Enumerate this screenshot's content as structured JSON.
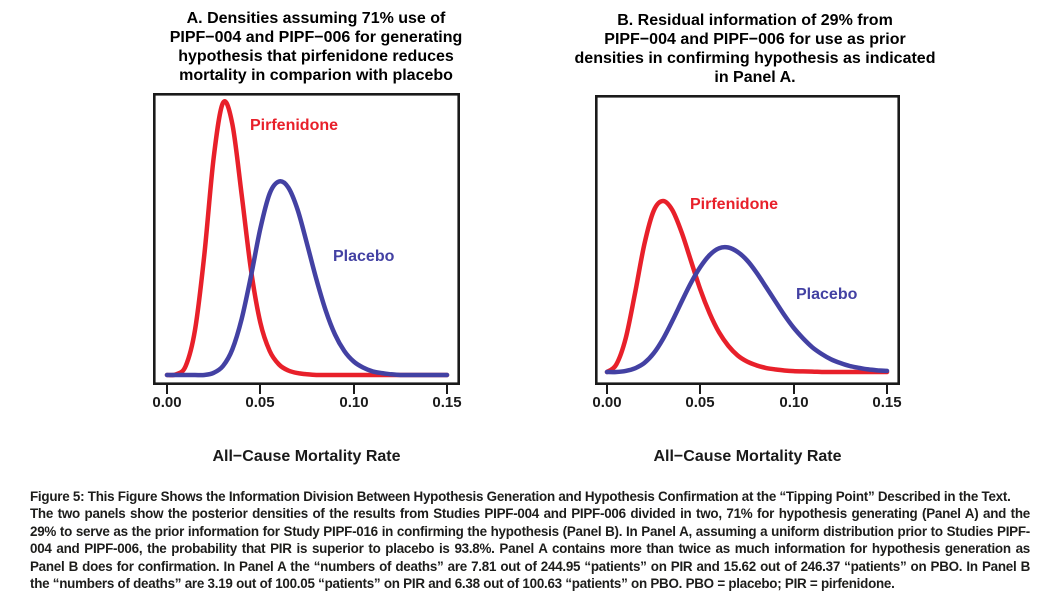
{
  "chart_data": [
    {
      "panel": "A",
      "type": "line",
      "title": "A. Densities assuming 71% use of PIPF−004 and PIPF−006 for generating hypothesis that pirfenidone reduces mortality in comparion with placebo",
      "title_lines": [
        "A. Densities assuming 71% use of",
        "PIPF−004 and PIPF−006 for generating",
        "hypothesis that pirfenidone reduces",
        "mortality in comparion with placebo"
      ],
      "xlabel": "All−Cause Mortality Rate",
      "ylabel": "",
      "y_axis_shown": false,
      "xlim": [
        0,
        0.15
      ],
      "ylim": [
        0,
        38
      ],
      "xticks": [
        0.0,
        0.05,
        0.1,
        0.15
      ],
      "xtick_labels": [
        "0.00",
        "0.05",
        "0.10",
        "0.15"
      ],
      "x": [
        0,
        0.005,
        0.01,
        0.015,
        0.02,
        0.025,
        0.03,
        0.035,
        0.04,
        0.045,
        0.05,
        0.055,
        0.06,
        0.065,
        0.07,
        0.075,
        0.08,
        0.085,
        0.09,
        0.095,
        0.1,
        0.105,
        0.11,
        0.115,
        0.12,
        0.125,
        0.13,
        0.135,
        0.14,
        0.145,
        0.15
      ],
      "series": [
        {
          "name": "Pirfenidone",
          "color": "#e8202a",
          "peak_x": 0.031,
          "density": [
            0,
            0.1,
            1.2,
            6,
            16,
            29,
            36.3,
            33.5,
            24,
            14,
            7,
            3.2,
            1.4,
            0.6,
            0.25,
            0.1,
            0,
            0,
            0,
            0,
            0,
            0,
            0,
            0,
            0,
            0,
            0,
            0,
            0,
            0,
            0
          ]
        },
        {
          "name": "Placebo",
          "color": "#4341a3",
          "peak_x": 0.062,
          "density": [
            0,
            0,
            0,
            0,
            0,
            0.3,
            1.2,
            3.4,
            7.5,
            13.2,
            19.5,
            24.2,
            25.8,
            25.0,
            22.0,
            17.5,
            12.8,
            8.6,
            5.4,
            3.2,
            1.8,
            1.0,
            0.5,
            0.25,
            0.1,
            0,
            0,
            0,
            0,
            0,
            0
          ]
        }
      ]
    },
    {
      "panel": "B",
      "type": "line",
      "title": "B. Residual information of 29% from PIPF−004 and PIPF−006 for use as prior densities in confirming hypothesis as indicated in Panel A.",
      "title_lines": [
        "B. Residual information of 29% from",
        "PIPF−004 and PIPF−006 for use as prior",
        "densities in confirming hypothesis as indicated",
        "in Panel A."
      ],
      "xlabel": "All−Cause Mortality Rate",
      "ylabel": "",
      "y_axis_shown": false,
      "xlim": [
        0,
        0.15
      ],
      "ylim": [
        0,
        38
      ],
      "xticks": [
        0.0,
        0.05,
        0.1,
        0.15
      ],
      "xtick_labels": [
        "0.00",
        "0.05",
        "0.10",
        "0.15"
      ],
      "x": [
        0,
        0.005,
        0.01,
        0.015,
        0.02,
        0.025,
        0.03,
        0.035,
        0.04,
        0.045,
        0.05,
        0.055,
        0.06,
        0.065,
        0.07,
        0.075,
        0.08,
        0.085,
        0.09,
        0.095,
        0.1,
        0.105,
        0.11,
        0.115,
        0.12,
        0.125,
        0.13,
        0.135,
        0.14,
        0.145,
        0.15
      ],
      "series": [
        {
          "name": "Pirfenidone",
          "color": "#e8202a",
          "peak_x": 0.031,
          "density": [
            0,
            1,
            4.5,
            10.5,
            17,
            21.5,
            22.8,
            21.6,
            18.6,
            14.8,
            11,
            7.8,
            5.3,
            3.5,
            2.2,
            1.4,
            0.9,
            0.55,
            0.35,
            0.2,
            0.12,
            0.08,
            0.05,
            0,
            0,
            0,
            0,
            0,
            0,
            0,
            0
          ]
        },
        {
          "name": "Placebo",
          "color": "#4341a3",
          "peak_x": 0.063,
          "density": [
            0,
            0,
            0.15,
            0.5,
            1.2,
            2.5,
            4.4,
            6.8,
            9.4,
            11.9,
            14,
            15.6,
            16.5,
            16.6,
            16,
            14.9,
            13.3,
            11.4,
            9.5,
            7.6,
            5.9,
            4.5,
            3.3,
            2.4,
            1.7,
            1.2,
            0.8,
            0.55,
            0.35,
            0.22,
            0.15
          ]
        }
      ]
    }
  ],
  "caption": {
    "lead": "Figure 5:",
    "headline": " This Figure Shows the Information Division Between Hypothesis Generation and Hypothesis Confirmation at the “Tipping Point” Described in the Text.",
    "body": "The two panels show the posterior densities of the results from Studies PIPF-004 and PIPF-006 divided in two, 71% for hypothesis generating (Panel A) and the 29% to serve as the prior information for Study PIPF-016 in confirming the hypothesis (Panel B). In Panel A, assuming a uniform distribution prior to Studies PIPF-004 and PIPF-006, the probability that PIR is superior to placebo is 93.8%. Panel A contains more than twice as much information for hypothesis generation as Panel B does for confirmation. In Panel A the “numbers of deaths” are 7.81 out of 244.95 “patients” on PIR and 15.62 out of 246.37 “patients” on PBO. In Panel B the “numbers of deaths” are 3.19 out of 100.05 “patients” on PIR and 6.38 out of 100.63 “patients” on PBO. PBO = placebo; PIR = pirfenidone."
  }
}
